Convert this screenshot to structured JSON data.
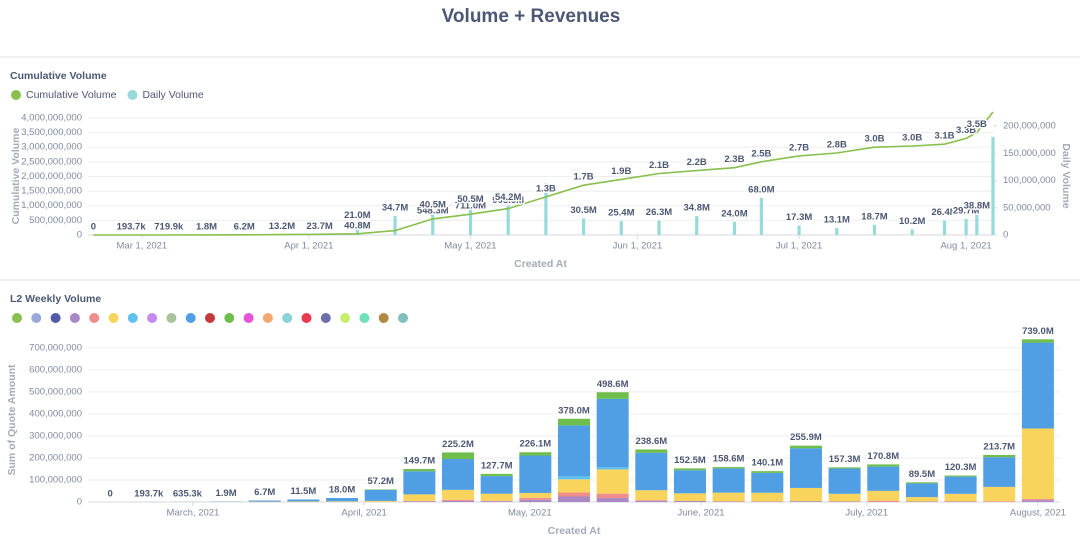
{
  "title": "Volume + Revenues",
  "chart_data": [
    {
      "type": "combo",
      "title": "Cumulative Volume",
      "x_label": "Created At",
      "y_label": "Cumulative Volume",
      "y2_label": "Daily Volume",
      "x": [
        "2021-02-20",
        "2021-02-27",
        "2021-03-06",
        "2021-03-13",
        "2021-03-20",
        "2021-03-27",
        "2021-04-03",
        "2021-04-10",
        "2021-04-17",
        "2021-04-24",
        "2021-05-01",
        "2021-05-08",
        "2021-05-15",
        "2021-05-22",
        "2021-05-29",
        "2021-06-05",
        "2021-06-12",
        "2021-06-19",
        "2021-06-24",
        "2021-07-01",
        "2021-07-08",
        "2021-07-15",
        "2021-07-22",
        "2021-07-28",
        "2021-08-01",
        "2021-08-03",
        "2021-08-06"
      ],
      "xlim": [
        "2021-02-19",
        "2021-08-06"
      ],
      "xticks": [
        {
          "value": "2021-03-01",
          "label": "Mar 1, 2021"
        },
        {
          "value": "2021-04-01",
          "label": "Apr 1, 2021"
        },
        {
          "value": "2021-05-01",
          "label": "May 1, 2021"
        },
        {
          "value": "2021-06-01",
          "label": "Jun 1, 2021"
        },
        {
          "value": "2021-07-01",
          "label": "Jul 1, 2021"
        },
        {
          "value": "2021-08-01",
          "label": "Aug 1, 2021"
        }
      ],
      "ylim": [
        0,
        4030000000
      ],
      "yticks": [
        0,
        {
          "value": 500000000,
          "label": "500,000,000"
        },
        {
          "value": 1000000000,
          "label": "1,000,000,000"
        },
        {
          "value": 1500000000,
          "label": "1,500,000,000"
        },
        {
          "value": 2000000000,
          "label": "2,000,000,000"
        },
        {
          "value": 2500000000,
          "label": "2,500,000,000"
        },
        {
          "value": 3000000000,
          "label": "3,000,000,000"
        },
        {
          "value": 3500000000,
          "label": "3,500,000,000"
        },
        {
          "value": 4000000000,
          "label": "4,000,000,000"
        }
      ],
      "y2lim": [
        0,
        216500000
      ],
      "y2ticks": [
        0,
        {
          "value": 50000000,
          "label": "50,000,000"
        },
        {
          "value": 100000000,
          "label": "100,000,000"
        },
        {
          "value": 150000000,
          "label": "150,000,000"
        },
        {
          "value": 200000000,
          "label": "200,000,000"
        }
      ],
      "grid": true,
      "series": [
        {
          "name": "Cumulative Volume",
          "type": "line",
          "color": "#88bf4d",
          "values": [
            0,
            193700,
            719900,
            1800000,
            6200000,
            13200000,
            23700000,
            40800000,
            150000000,
            548300000,
            711000000,
            903300000,
            1300000000,
            1700000000,
            1900000000,
            2100000000,
            2200000000,
            2300000000,
            2500000000,
            2700000000,
            2800000000,
            3000000000,
            3040000000,
            3100000000,
            3300000000,
            3500000000,
            4200000000
          ],
          "value_labels": [
            "0",
            "193.7k",
            "719.9k",
            "1.8M",
            "6.2M",
            "13.2M",
            "23.7M",
            "40.8M",
            null,
            "548.3M",
            "711.0M",
            "903.3M",
            "1.3B",
            "1.7B",
            "1.9B",
            "2.1B",
            "2.2B",
            "2.3B",
            "2.5B",
            "2.7B",
            "2.8B",
            "3.0B",
            "3.0B",
            "3.1B",
            "3.3B",
            "3.5B",
            null
          ]
        },
        {
          "name": "Daily Volume",
          "type": "bar",
          "axis": "y2",
          "color": "#98d9d9",
          "values": [
            0,
            50000,
            150000,
            300000,
            800000,
            1500000,
            2500000,
            21000000,
            34700000,
            40500000,
            50500000,
            54200000,
            95000000,
            30500000,
            25400000,
            26300000,
            34800000,
            24000000,
            68000000,
            17300000,
            13100000,
            18700000,
            10200000,
            26400000,
            29700000,
            38800000,
            180000000
          ],
          "value_labels": [
            null,
            null,
            null,
            null,
            null,
            null,
            null,
            "21.0M",
            "34.7M",
            "40.5M",
            "50.5M",
            "54.2M",
            null,
            "30.5M",
            "25.4M",
            "26.3M",
            "34.8M",
            "24.0M",
            "68.0M",
            "17.3M",
            "13.1M",
            "18.7M",
            "10.2M",
            "26.4M",
            "29.7M",
            "38.8M",
            null
          ]
        }
      ]
    },
    {
      "type": "bar",
      "title": "L2 Weekly Volume",
      "x_label": "Created At",
      "y_label": "Sum of Quote Amount",
      "stacked": true,
      "x": [
        "2021-02-14",
        "2021-02-21",
        "2021-02-28",
        "2021-03-07",
        "2021-03-14",
        "2021-03-21",
        "2021-03-28",
        "2021-04-04",
        "2021-04-11",
        "2021-04-18",
        "2021-04-25",
        "2021-05-02",
        "2021-05-09",
        "2021-05-16",
        "2021-05-23",
        "2021-05-30",
        "2021-06-06",
        "2021-06-13",
        "2021-06-20",
        "2021-06-27",
        "2021-07-04",
        "2021-07-11",
        "2021-07-18",
        "2021-07-25",
        "2021-08-01"
      ],
      "xlim": [
        "2021-02-10",
        "2021-08-05"
      ],
      "xticks": [
        {
          "value": "2021-03-01",
          "label": "March, 2021"
        },
        {
          "value": "2021-04-01",
          "label": "April, 2021"
        },
        {
          "value": "2021-05-01",
          "label": "May, 2021"
        },
        {
          "value": "2021-06-01",
          "label": "June, 2021"
        },
        {
          "value": "2021-07-01",
          "label": "July, 2021"
        },
        {
          "value": "2021-08-01",
          "label": "August, 2021"
        }
      ],
      "ylim": [
        0,
        745000000
      ],
      "yticks": [
        0,
        {
          "value": 100000000,
          "label": "100,000,000"
        },
        {
          "value": 200000000,
          "label": "200,000,000"
        },
        {
          "value": 300000000,
          "label": "300,000,000"
        },
        {
          "value": 400000000,
          "label": "400,000,000"
        },
        {
          "value": 500000000,
          "label": "500,000,000"
        },
        {
          "value": 600000000,
          "label": "600,000,000"
        },
        {
          "value": 700000000,
          "label": "700,000,000"
        }
      ],
      "grid": true,
      "totals": [
        0,
        193700,
        635300,
        1900000,
        6700000,
        11500000,
        18000000,
        57200000,
        149700000,
        225200000,
        127700000,
        226100000,
        378000000,
        498600000,
        238600000,
        152500000,
        158600000,
        140100000,
        255900000,
        157300000,
        170800000,
        89500000,
        120300000,
        213700000,
        739000000
      ],
      "totals_labels": [
        "0",
        "193.7k",
        "635.3k",
        "1.9M",
        "6.7M",
        "11.5M",
        "18.0M",
        "57.2M",
        "149.7M",
        "225.2M",
        "127.7M",
        "226.1M",
        "378.0M",
        "498.6M",
        "238.6M",
        "152.5M",
        "158.6M",
        "140.1M",
        "255.9M",
        "157.3M",
        "170.8M",
        "89.5M",
        "120.3M",
        "213.7M",
        "739.0M"
      ],
      "series": [
        {
          "color": "#88bf4d",
          "values": [
            0,
            0,
            0,
            0,
            0,
            0,
            0,
            0,
            0,
            0,
            0,
            0,
            0,
            0,
            0,
            0,
            0,
            0,
            0,
            0,
            0,
            0,
            0,
            0,
            0
          ]
        },
        {
          "color": "#98a9d8",
          "values": [
            0,
            0,
            0,
            0,
            0,
            0,
            0,
            0,
            0,
            0,
            0,
            0,
            0,
            0,
            0,
            0,
            0,
            0,
            0,
            0,
            0,
            0,
            0,
            0,
            0
          ]
        },
        {
          "color": "#5159a8",
          "values": [
            0,
            0,
            0,
            0,
            0,
            0,
            0,
            0,
            0,
            0,
            0,
            0,
            0,
            0,
            0,
            0,
            0,
            0,
            0,
            0,
            0,
            0,
            0,
            0,
            0
          ]
        },
        {
          "color": "#a989c5",
          "values": [
            0,
            0,
            0,
            0,
            0,
            0,
            0,
            0,
            3000000,
            5000000,
            4000000,
            10000000,
            25000000,
            18000000,
            5000000,
            4500000,
            2600000,
            2100000,
            3900000,
            2300000,
            0,
            2500000,
            2300000,
            0,
            8000000
          ]
        },
        {
          "color": "#ef8c8c",
          "values": [
            0,
            0,
            0,
            0,
            0,
            0,
            0,
            0,
            1700000,
            5200000,
            1700000,
            9100000,
            18000000,
            20000000,
            3600000,
            0,
            0,
            0,
            0,
            0,
            5800000,
            0,
            0,
            3700000,
            6000000
          ]
        },
        {
          "color": "#f9d45c",
          "values": [
            0,
            0,
            135300,
            400000,
            1700000,
            2500000,
            3000000,
            5000000,
            30000000,
            45000000,
            32000000,
            22000000,
            60000000,
            110000000,
            45000000,
            35000000,
            40000000,
            40000000,
            60000000,
            35000000,
            45000000,
            20000000,
            35000000,
            65000000,
            320000000
          ]
        },
        {
          "color": "#60c0ef",
          "values": [
            0,
            0,
            0,
            0,
            0,
            0,
            0,
            0,
            0,
            0,
            0,
            0,
            15000000,
            10600000,
            0,
            0,
            0,
            0,
            0,
            0,
            0,
            0,
            0,
            0,
            0
          ]
        },
        {
          "color": "#c589f0",
          "values": [
            0,
            0,
            0,
            0,
            0,
            0,
            0,
            0,
            0,
            0,
            0,
            0,
            0,
            0,
            0,
            0,
            0,
            0,
            0,
            0,
            0,
            0,
            0,
            0,
            0
          ]
        },
        {
          "color": "#a8c29c",
          "values": [
            0,
            0,
            0,
            0,
            0,
            0,
            0,
            0,
            0,
            0,
            0,
            0,
            0,
            0,
            0,
            0,
            0,
            0,
            0,
            0,
            0,
            0,
            0,
            0,
            0
          ]
        },
        {
          "color": "#509ee3",
          "values": [
            0,
            193700,
            500000,
            1500000,
            5000000,
            9000000,
            15000000,
            50000000,
            105000000,
            140000000,
            80000000,
            170000000,
            230000000,
            310000000,
            170000000,
            105000000,
            110000000,
            90000000,
            180000000,
            115000000,
            110000000,
            62000000,
            78000000,
            135000000,
            390000000
          ]
        },
        {
          "color": "#c23a3a",
          "values": [
            0,
            0,
            0,
            0,
            0,
            0,
            0,
            0,
            0,
            0,
            0,
            0,
            0,
            0,
            0,
            0,
            0,
            0,
            0,
            0,
            0,
            0,
            0,
            0,
            0
          ]
        },
        {
          "color": "#6fbe4b",
          "values": [
            0,
            0,
            0,
            0,
            0,
            0,
            0,
            2200000,
            10000000,
            30000000,
            10000000,
            15000000,
            30000000,
            30000000,
            15000000,
            8000000,
            6000000,
            8000000,
            12000000,
            5000000,
            10000000,
            5000000,
            5000000,
            10000000,
            15000000
          ]
        },
        {
          "color": "#e653d9",
          "values": [
            0,
            0,
            0,
            0,
            0,
            0,
            0,
            0,
            0,
            0,
            0,
            0,
            0,
            0,
            0,
            0,
            0,
            0,
            0,
            0,
            0,
            0,
            0,
            0,
            0
          ]
        },
        {
          "color": "#f2a86f",
          "values": [
            0,
            0,
            0,
            0,
            0,
            0,
            0,
            0,
            0,
            0,
            0,
            0,
            0,
            0,
            0,
            0,
            0,
            0,
            0,
            0,
            0,
            0,
            0,
            0,
            0
          ]
        },
        {
          "color": "#8ad3d9",
          "values": [
            0,
            0,
            0,
            0,
            0,
            0,
            0,
            0,
            0,
            0,
            0,
            0,
            0,
            0,
            0,
            0,
            0,
            0,
            0,
            0,
            0,
            0,
            0,
            0,
            0
          ]
        },
        {
          "color": "#e8394f",
          "values": [
            0,
            0,
            0,
            0,
            0,
            0,
            0,
            0,
            0,
            0,
            0,
            0,
            0,
            0,
            0,
            0,
            0,
            0,
            0,
            0,
            0,
            0,
            0,
            0,
            0
          ]
        },
        {
          "color": "#6a6fa8",
          "values": [
            0,
            0,
            0,
            0,
            0,
            0,
            0,
            0,
            0,
            0,
            0,
            0,
            0,
            0,
            0,
            0,
            0,
            0,
            0,
            0,
            0,
            0,
            0,
            0,
            0
          ]
        },
        {
          "color": "#c6ee6b",
          "values": [
            0,
            0,
            0,
            0,
            0,
            0,
            0,
            0,
            0,
            0,
            0,
            0,
            0,
            0,
            0,
            0,
            0,
            0,
            0,
            0,
            0,
            0,
            0,
            0,
            0
          ]
        },
        {
          "color": "#6ee0bc",
          "values": [
            0,
            0,
            0,
            0,
            0,
            0,
            0,
            0,
            0,
            0,
            0,
            0,
            0,
            0,
            0,
            0,
            0,
            0,
            0,
            0,
            0,
            0,
            0,
            0,
            0
          ]
        },
        {
          "color": "#b08b44",
          "values": [
            0,
            0,
            0,
            0,
            0,
            0,
            0,
            0,
            0,
            0,
            0,
            0,
            0,
            0,
            0,
            0,
            0,
            0,
            0,
            0,
            0,
            0,
            0,
            0,
            0
          ]
        },
        {
          "color": "#7fbfc0",
          "values": [
            0,
            0,
            0,
            0,
            0,
            0,
            0,
            0,
            0,
            0,
            0,
            0,
            0,
            0,
            0,
            0,
            0,
            0,
            0,
            0,
            0,
            0,
            0,
            0,
            0
          ]
        }
      ]
    }
  ]
}
